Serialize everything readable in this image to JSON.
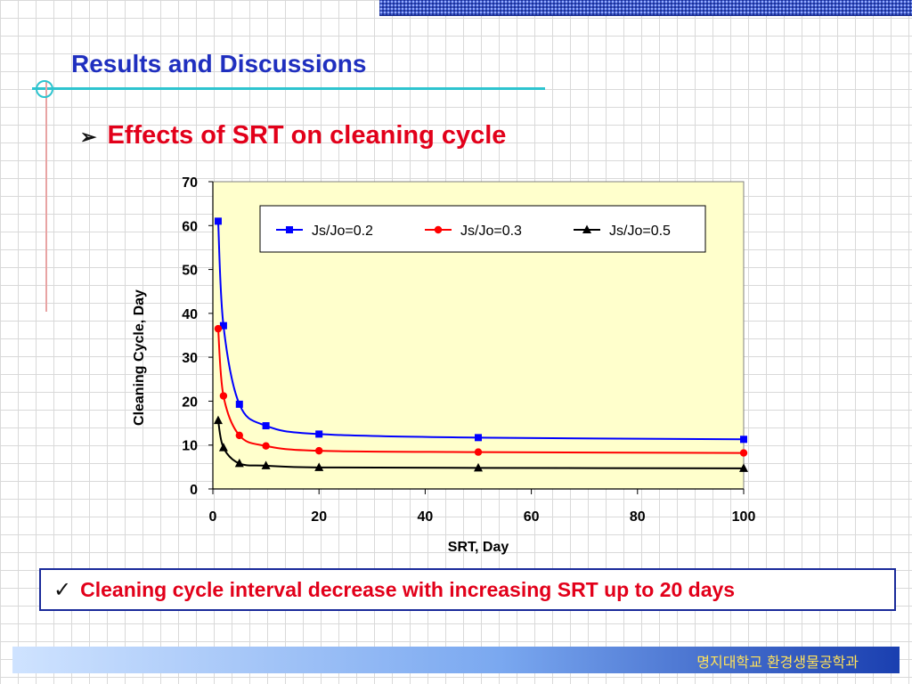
{
  "slide": {
    "title": "Results and Discussions",
    "subtitle_bullet": "➢",
    "subtitle": "Effects of SRT on cleaning cycle",
    "conclusion_check": "✓",
    "conclusion": "Cleaning cycle interval decrease with increasing SRT up to 20 days",
    "footer": "명지대학교 환경생물공학과"
  },
  "colors": {
    "title": "#1f2fbf",
    "subtitle": "#e2001a",
    "plot_background": "#ffffcc",
    "series_blue": "#0000ff",
    "series_red": "#ff0000",
    "series_black": "#000000"
  },
  "chart_data": {
    "type": "line",
    "xlabel": "SRT, Day",
    "ylabel": "Cleaning Cycle, Day",
    "xlim": [
      0,
      100
    ],
    "ylim": [
      0,
      70
    ],
    "xticks": [
      0,
      20,
      40,
      60,
      80,
      100
    ],
    "yticks": [
      0,
      10,
      20,
      30,
      40,
      50,
      60,
      70
    ],
    "grid": false,
    "legend_position": "top-right",
    "series": [
      {
        "name": "Js/Jo=0.2",
        "marker": "square",
        "color": "#0000ff",
        "x": [
          1,
          2,
          5,
          10,
          20,
          50,
          100
        ],
        "y": [
          61,
          37.2,
          19.3,
          14.4,
          12.5,
          11.7,
          11.3
        ]
      },
      {
        "name": "Js/Jo=0.3",
        "marker": "circle",
        "color": "#ff0000",
        "x": [
          1,
          2,
          5,
          10,
          20,
          50,
          100
        ],
        "y": [
          36.5,
          21.2,
          12.2,
          9.8,
          8.7,
          8.4,
          8.2
        ]
      },
      {
        "name": "Js/Jo=0.5",
        "marker": "triangle",
        "color": "#000000",
        "x": [
          1,
          2,
          5,
          10,
          20,
          50,
          100
        ],
        "y": [
          15.6,
          9.4,
          5.8,
          5.3,
          4.9,
          4.8,
          4.7
        ]
      }
    ]
  }
}
